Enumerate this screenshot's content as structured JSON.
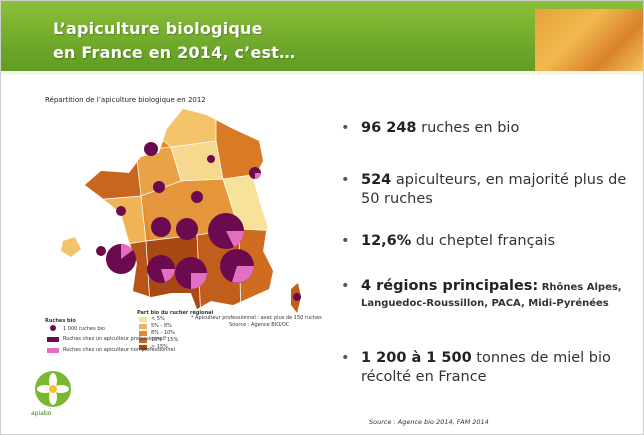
{
  "header": {
    "title_lines": [
      "L’apiculture biologique",
      "en France en 2014, c’est…"
    ]
  },
  "map": {
    "title": "Répartition de l’apiculture biologique en 2012",
    "legend_hives": {
      "title": "Ruches bio",
      "items": [
        "1 000 ruches bio",
        "Ruches chez un apiculteur professionnel*",
        "Ruches chez un apiculteur non professionnel"
      ]
    },
    "legend_share": {
      "title": "Part bio du rucher régional",
      "items": [
        "< 5%",
        "5% - 8%",
        "8% - 10%",
        "10% - 15%",
        "> 15%"
      ]
    },
    "note": "* Apiculteur professionnel : avec plus de 150 ruches",
    "source": "Source : Agence BIO/OC"
  },
  "bullets": [
    {
      "bold": "96 248",
      "text": " ruches en bio"
    },
    {
      "bold": "524",
      "text": " apiculteurs, en majorité plus de 50 ruches"
    },
    {
      "bold": "12,6%",
      "text": " du cheptel français"
    },
    {
      "bold": "4 régions principales:",
      "text": " Rhônes Alpes, Languedoc-Roussillon, PACA, Midi-Pyrénées"
    },
    {
      "bold": "1 200 à 1 500",
      "text": " tonnes de miel bio récolté en France"
    }
  ],
  "source": "Source : Agence bio 2014, FAM 2014",
  "logo": {
    "name": "apiabo"
  }
}
